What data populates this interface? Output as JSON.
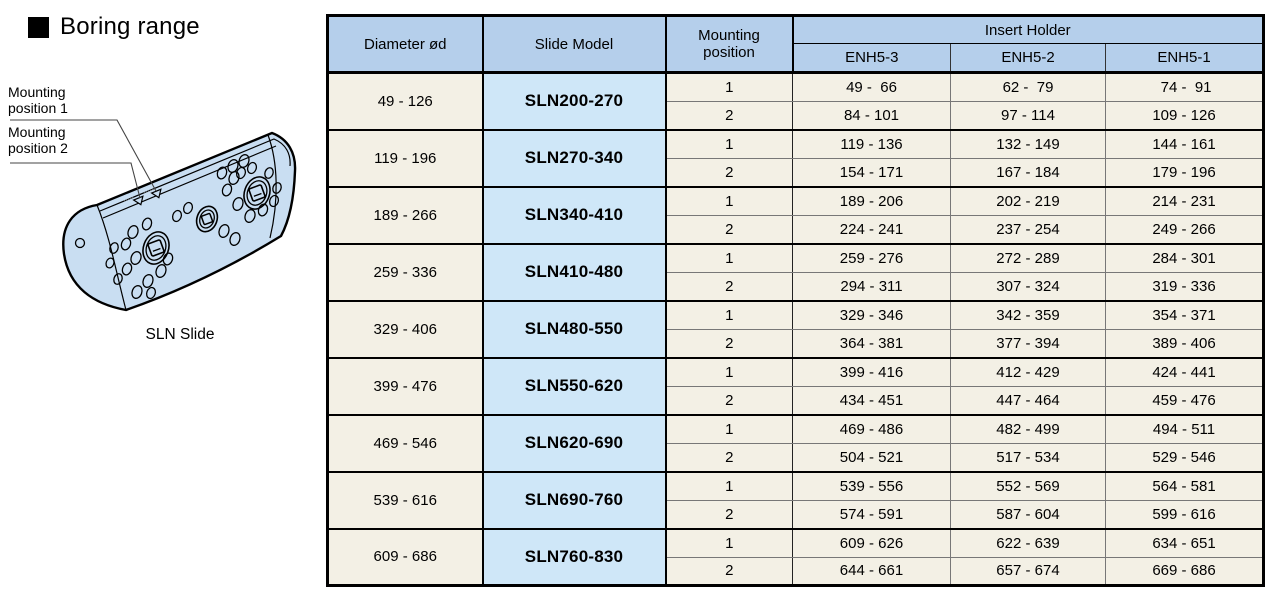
{
  "page": {
    "title": "Boring range"
  },
  "illustration": {
    "labels": {
      "mounting1_line1": "Mounting",
      "mounting1_line2": "position 1",
      "mounting2_line1": "Mounting",
      "mounting2_line2": "position 2"
    },
    "caption": "SLN Slide"
  },
  "table": {
    "headers": {
      "diameter": "Diameter ød",
      "slide_model": "Slide Model",
      "mounting_line1": "Mounting",
      "mounting_line2": "position",
      "insert_holder": "Insert Holder",
      "enh5_3": "ENH5-3",
      "enh5_2": "ENH5-2",
      "enh5_1": "ENH5-1"
    },
    "groups": [
      {
        "diameter": "49 - 126",
        "model": "SLN200-270",
        "rows": [
          {
            "position": "1",
            "enh5_3": "49 -  66",
            "enh5_2": "62 -  79",
            "enh5_1": " 74 -  91"
          },
          {
            "position": "2",
            "enh5_3": "84 - 101",
            "enh5_2": "97 - 114",
            "enh5_1": "109 - 126"
          }
        ]
      },
      {
        "diameter": "119 - 196",
        "model": "SLN270-340",
        "rows": [
          {
            "position": "1",
            "enh5_3": "119 - 136",
            "enh5_2": "132 - 149",
            "enh5_1": "144 - 161"
          },
          {
            "position": "2",
            "enh5_3": "154 - 171",
            "enh5_2": "167 - 184",
            "enh5_1": "179 - 196"
          }
        ]
      },
      {
        "diameter": "189 - 266",
        "model": "SLN340-410",
        "rows": [
          {
            "position": "1",
            "enh5_3": "189 - 206",
            "enh5_2": "202 - 219",
            "enh5_1": "214 - 231"
          },
          {
            "position": "2",
            "enh5_3": "224 - 241",
            "enh5_2": "237 - 254",
            "enh5_1": "249 - 266"
          }
        ]
      },
      {
        "diameter": "259 - 336",
        "model": "SLN410-480",
        "rows": [
          {
            "position": "1",
            "enh5_3": "259 - 276",
            "enh5_2": "272 - 289",
            "enh5_1": "284 - 301"
          },
          {
            "position": "2",
            "enh5_3": "294 - 311",
            "enh5_2": "307 - 324",
            "enh5_1": "319 - 336"
          }
        ]
      },
      {
        "diameter": "329 - 406",
        "model": "SLN480-550",
        "rows": [
          {
            "position": "1",
            "enh5_3": "329 - 346",
            "enh5_2": "342 - 359",
            "enh5_1": "354 - 371"
          },
          {
            "position": "2",
            "enh5_3": "364 - 381",
            "enh5_2": "377 - 394",
            "enh5_1": "389 - 406"
          }
        ]
      },
      {
        "diameter": "399 - 476",
        "model": "SLN550-620",
        "rows": [
          {
            "position": "1",
            "enh5_3": "399 - 416",
            "enh5_2": "412 - 429",
            "enh5_1": "424 - 441"
          },
          {
            "position": "2",
            "enh5_3": "434 - 451",
            "enh5_2": "447 - 464",
            "enh5_1": "459 - 476"
          }
        ]
      },
      {
        "diameter": "469 - 546",
        "model": "SLN620-690",
        "rows": [
          {
            "position": "1",
            "enh5_3": "469 - 486",
            "enh5_2": "482 - 499",
            "enh5_1": "494 - 511"
          },
          {
            "position": "2",
            "enh5_3": "504 - 521",
            "enh5_2": "517 - 534",
            "enh5_1": "529 - 546"
          }
        ]
      },
      {
        "diameter": "539 - 616",
        "model": "SLN690-760",
        "rows": [
          {
            "position": "1",
            "enh5_3": "539 - 556",
            "enh5_2": "552 - 569",
            "enh5_1": "564 - 581"
          },
          {
            "position": "2",
            "enh5_3": "574 - 591",
            "enh5_2": "587 - 604",
            "enh5_1": "599 - 616"
          }
        ]
      },
      {
        "diameter": "609 - 686",
        "model": "SLN760-830",
        "rows": [
          {
            "position": "1",
            "enh5_3": "609 - 626",
            "enh5_2": "622 - 639",
            "enh5_1": "634 - 651"
          },
          {
            "position": "2",
            "enh5_3": "644 - 661",
            "enh5_2": "657 - 674",
            "enh5_1": "669 - 686"
          }
        ]
      }
    ]
  },
  "colors": {
    "header_blue": "#b5cfeb",
    "model_cell_blue": "#cfe7f8",
    "data_cell_cream": "#f3f0e5",
    "slide_body_blue": "#c9def2",
    "border_black": "#000000"
  }
}
